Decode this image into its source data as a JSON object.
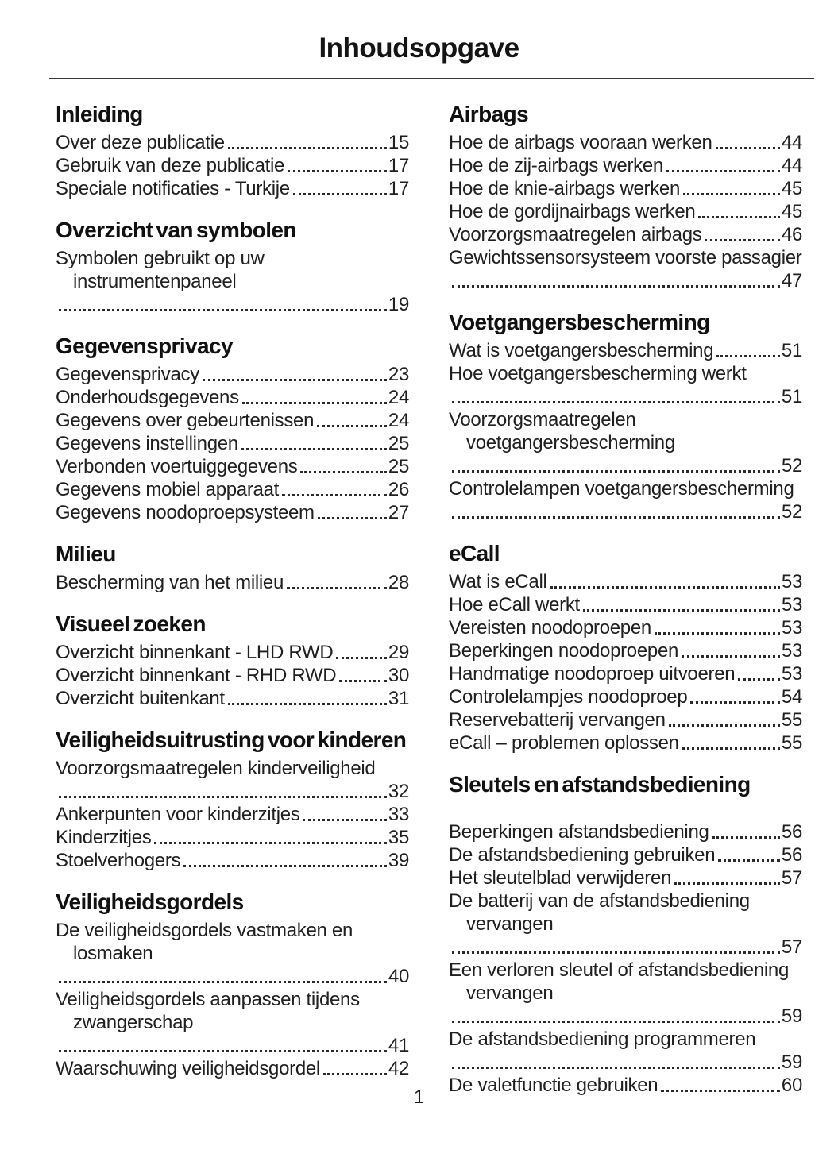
{
  "page": {
    "title": "Inhoudsopgave",
    "page_number": "1"
  },
  "columns": [
    {
      "sections": [
        {
          "heading": "Inleiding",
          "entries": [
            {
              "label": "Over deze publicatie",
              "page": "15"
            },
            {
              "label": "Gebruik van deze publicatie",
              "page": "17"
            },
            {
              "label": "Speciale notificaties - Turkije",
              "page": "17"
            }
          ]
        },
        {
          "heading": "Overzicht van symbolen",
          "entries": [
            {
              "label": "Symbolen gebruikt op uw instrumentenpaneel",
              "page": "19"
            }
          ]
        },
        {
          "heading": "Gegevensprivacy",
          "entries": [
            {
              "label": "Gegevensprivacy",
              "page": "23"
            },
            {
              "label": "Onderhoudsgegevens",
              "page": "24"
            },
            {
              "label": "Gegevens over gebeurtenissen",
              "page": "24"
            },
            {
              "label": "Gegevens instellingen",
              "page": "25"
            },
            {
              "label": "Verbonden voertuiggegevens",
              "page": "25"
            },
            {
              "label": "Gegevens mobiel apparaat",
              "page": "26"
            },
            {
              "label": "Gegevens noodoproepsysteem",
              "page": "27"
            }
          ]
        },
        {
          "heading": "Milieu",
          "entries": [
            {
              "label": "Bescherming van het milieu",
              "page": "28"
            }
          ]
        },
        {
          "heading": "Visueel zoeken",
          "entries": [
            {
              "label": "Overzicht binnenkant - LHD RWD",
              "page": "29"
            },
            {
              "label": "Overzicht binnenkant - RHD RWD",
              "page": "30"
            },
            {
              "label": "Overzicht buitenkant",
              "page": "31"
            }
          ]
        },
        {
          "heading": "Veiligheidsuitrusting voor kinderen",
          "entries": [
            {
              "label": "Voorzorgsmaatregelen kinderveiligheid",
              "page": "32",
              "dots_own_line": true
            },
            {
              "label": "Ankerpunten voor kinderzitjes",
              "page": "33"
            },
            {
              "label": "Kinderzitjes",
              "page": "35"
            },
            {
              "label": "Stoelverhogers",
              "page": "39"
            }
          ]
        },
        {
          "heading": "Veiligheidsgordels",
          "entries": [
            {
              "label": "De veiligheidsgordels vastmaken en losmaken",
              "page": "40"
            },
            {
              "label": "Veiligheidsgordels aanpassen tijdens zwangerschap",
              "page": "41"
            },
            {
              "label": "Waarschuwing veiligheidsgordel",
              "page": "42"
            }
          ]
        }
      ]
    },
    {
      "sections": [
        {
          "heading": "Airbags",
          "entries": [
            {
              "label": "Hoe de airbags vooraan werken",
              "page": "44"
            },
            {
              "label": "Hoe de zij-airbags werken",
              "page": "44"
            },
            {
              "label": "Hoe de knie-airbags werken",
              "page": "45"
            },
            {
              "label": "Hoe de gordijnairbags werken",
              "page": "45"
            },
            {
              "label": "Voorzorgsmaatregelen airbags",
              "page": "46"
            },
            {
              "label": "Gewichtssensorsysteem voorste passagier",
              "page": "47"
            }
          ]
        },
        {
          "heading": "Voetgangersbescherming",
          "entries": [
            {
              "label": "Wat is voetgangersbescherming",
              "page": "51"
            },
            {
              "label": "Hoe voetgangersbescherming werkt",
              "page": "51",
              "dots_own_line": true
            },
            {
              "label": "Voorzorgsmaatregelen voetgangersbescherming",
              "page": "52"
            },
            {
              "label": "Controlelampen voetgangersbescherming",
              "page": "52"
            }
          ]
        },
        {
          "heading": "eCall",
          "entries": [
            {
              "label": "Wat is eCall",
              "page": "53"
            },
            {
              "label": "Hoe eCall werkt",
              "page": "53"
            },
            {
              "label": "Vereisten noodoproepen",
              "page": "53"
            },
            {
              "label": "Beperkingen noodoproepen",
              "page": "53"
            },
            {
              "label": "Handmatige noodoproep uitvoeren",
              "page": "53"
            },
            {
              "label": "Controlelampjes noodoproep",
              "page": "54"
            },
            {
              "label": "Reservebatterij vervangen",
              "page": "55"
            },
            {
              "label": "eCall – problemen oplossen",
              "page": "55"
            }
          ]
        },
        {
          "heading": "Sleutels en afstandsbediening",
          "extra_gap": true,
          "entries": [
            {
              "label": "Beperkingen afstandsbediening",
              "page": "56"
            },
            {
              "label": "De afstandsbediening gebruiken",
              "page": "56"
            },
            {
              "label": "Het sleutelblad verwijderen",
              "page": "57"
            },
            {
              "label": "De batterij van de afstandsbediening vervangen",
              "page": "57"
            },
            {
              "label": "Een verloren sleutel of afstandsbediening vervangen",
              "page": "59"
            },
            {
              "label": "De afstandsbediening programmeren",
              "page": "59",
              "dots_own_line": true
            },
            {
              "label": "De valetfunctie gebruiken",
              "page": "60"
            }
          ]
        }
      ]
    }
  ]
}
